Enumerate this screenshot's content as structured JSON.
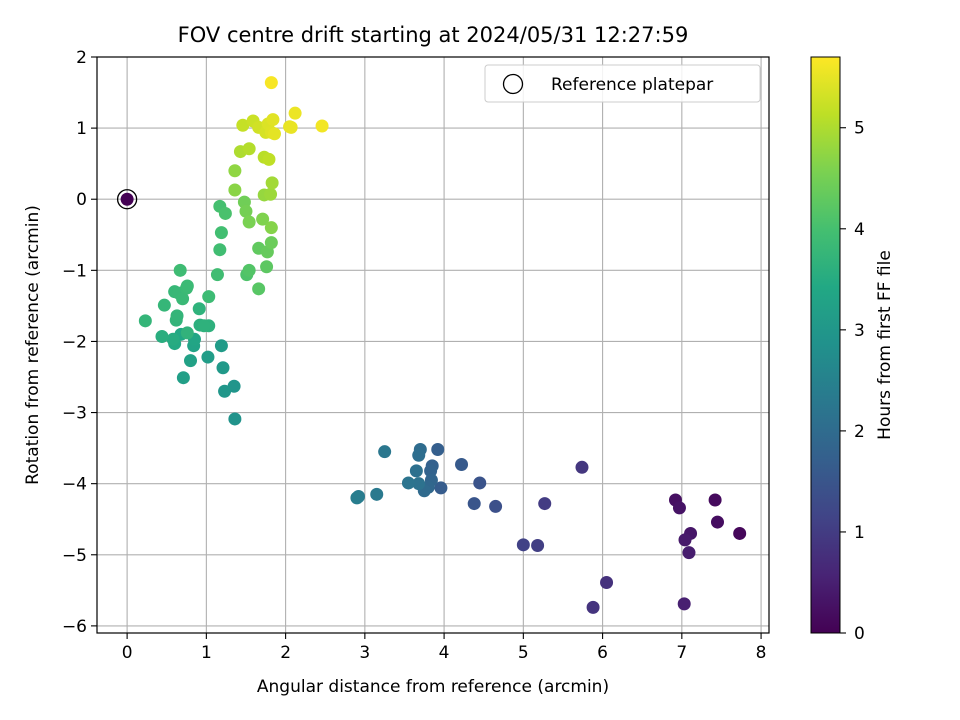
{
  "chart_data": {
    "type": "scatter",
    "title": "FOV centre drift starting at 2024/05/31 12:27:59",
    "xlabel": "Angular distance from reference (arcmin)",
    "ylabel": "Rotation from reference (arcmin)",
    "xlim": [
      -0.38,
      8.1
    ],
    "ylim": [
      -6.1,
      2.0
    ],
    "xticks": [
      0,
      1,
      2,
      3,
      4,
      5,
      6,
      7,
      8
    ],
    "yticks": [
      -6,
      -5,
      -4,
      -3,
      -2,
      -1,
      0,
      1,
      2
    ],
    "grid": true,
    "legend": {
      "placement": "top-right",
      "entries": [
        "Reference platepar"
      ]
    },
    "colormap": "viridis",
    "colorbar": {
      "label": "Hours from first FF file",
      "range": [
        0,
        5.7
      ],
      "ticks": [
        0,
        1,
        2,
        3,
        4,
        5
      ]
    },
    "reference_point": {
      "x": 0,
      "y": 0,
      "hours": 0
    },
    "points": [
      {
        "x": 7.73,
        "y": -4.7,
        "h": 0.1
      },
      {
        "x": 7.42,
        "y": -4.23,
        "h": 0.15
      },
      {
        "x": 7.45,
        "y": -4.54,
        "h": 0.2
      },
      {
        "x": 6.92,
        "y": -4.23,
        "h": 0.25
      },
      {
        "x": 6.97,
        "y": -4.34,
        "h": 0.3
      },
      {
        "x": 7.11,
        "y": -4.7,
        "h": 0.35
      },
      {
        "x": 7.04,
        "y": -4.79,
        "h": 0.4
      },
      {
        "x": 7.09,
        "y": -4.97,
        "h": 0.45
      },
      {
        "x": 7.03,
        "y": -5.69,
        "h": 0.5
      },
      {
        "x": 6.05,
        "y": -5.39,
        "h": 0.8
      },
      {
        "x": 5.88,
        "y": -5.74,
        "h": 0.85
      },
      {
        "x": 5.74,
        "y": -3.77,
        "h": 0.9
      },
      {
        "x": 5.27,
        "y": -4.28,
        "h": 1.0
      },
      {
        "x": 5.18,
        "y": -4.87,
        "h": 1.05
      },
      {
        "x": 5.0,
        "y": -4.86,
        "h": 1.1
      },
      {
        "x": 4.65,
        "y": -4.32,
        "h": 1.4
      },
      {
        "x": 4.45,
        "y": -3.99,
        "h": 1.45
      },
      {
        "x": 4.38,
        "y": -4.28,
        "h": 1.5
      },
      {
        "x": 4.22,
        "y": -3.73,
        "h": 1.6
      },
      {
        "x": 3.96,
        "y": -4.06,
        "h": 1.65
      },
      {
        "x": 3.92,
        "y": -3.52,
        "h": 1.7
      },
      {
        "x": 3.85,
        "y": -3.75,
        "h": 1.75
      },
      {
        "x": 3.83,
        "y": -3.82,
        "h": 1.8
      },
      {
        "x": 3.84,
        "y": -3.95,
        "h": 1.85
      },
      {
        "x": 3.8,
        "y": -4.05,
        "h": 1.9
      },
      {
        "x": 3.75,
        "y": -4.1,
        "h": 1.95
      },
      {
        "x": 3.7,
        "y": -3.52,
        "h": 2.0
      },
      {
        "x": 3.68,
        "y": -3.6,
        "h": 2.05
      },
      {
        "x": 3.65,
        "y": -3.82,
        "h": 2.1
      },
      {
        "x": 3.68,
        "y": -4.0,
        "h": 2.15
      },
      {
        "x": 3.55,
        "y": -3.99,
        "h": 2.2
      },
      {
        "x": 3.25,
        "y": -3.55,
        "h": 2.25
      },
      {
        "x": 3.15,
        "y": -4.15,
        "h": 2.3
      },
      {
        "x": 2.92,
        "y": -4.18,
        "h": 2.35
      },
      {
        "x": 2.9,
        "y": -4.2,
        "h": 2.4
      },
      {
        "x": 1.36,
        "y": -3.09,
        "h": 2.9
      },
      {
        "x": 1.35,
        "y": -2.63,
        "h": 2.95
      },
      {
        "x": 1.23,
        "y": -2.7,
        "h": 3.0
      },
      {
        "x": 1.21,
        "y": -2.37,
        "h": 3.05
      },
      {
        "x": 1.19,
        "y": -2.06,
        "h": 3.1
      },
      {
        "x": 1.02,
        "y": -2.22,
        "h": 3.15
      },
      {
        "x": 0.71,
        "y": -2.51,
        "h": 3.2
      },
      {
        "x": 0.8,
        "y": -2.27,
        "h": 3.25
      },
      {
        "x": 0.84,
        "y": -2.06,
        "h": 3.3
      },
      {
        "x": 0.85,
        "y": -1.97,
        "h": 3.35
      },
      {
        "x": 0.68,
        "y": -1.9,
        "h": 3.4
      },
      {
        "x": 0.6,
        "y": -2.03,
        "h": 3.45
      },
      {
        "x": 0.58,
        "y": -1.97,
        "h": 3.5
      },
      {
        "x": 0.44,
        "y": -1.93,
        "h": 3.55
      },
      {
        "x": 0.92,
        "y": -1.77,
        "h": 3.6
      },
      {
        "x": 1.03,
        "y": -1.78,
        "h": 3.62
      },
      {
        "x": 0.97,
        "y": -1.78,
        "h": 3.64
      },
      {
        "x": 0.91,
        "y": -1.54,
        "h": 3.66
      },
      {
        "x": 0.76,
        "y": -1.88,
        "h": 3.68
      },
      {
        "x": 0.62,
        "y": -1.7,
        "h": 3.7
      },
      {
        "x": 0.63,
        "y": -1.64,
        "h": 3.72
      },
      {
        "x": 0.23,
        "y": -1.71,
        "h": 3.74
      },
      {
        "x": 0.47,
        "y": -1.49,
        "h": 3.76
      },
      {
        "x": 0.6,
        "y": -1.3,
        "h": 3.78
      },
      {
        "x": 0.65,
        "y": -1.32,
        "h": 3.8
      },
      {
        "x": 0.7,
        "y": -1.4,
        "h": 3.82
      },
      {
        "x": 0.75,
        "y": -1.25,
        "h": 3.84
      },
      {
        "x": 0.76,
        "y": -1.22,
        "h": 3.86
      },
      {
        "x": 1.03,
        "y": -1.37,
        "h": 3.88
      },
      {
        "x": 0.67,
        "y": -1.0,
        "h": 3.9
      },
      {
        "x": 1.14,
        "y": -1.06,
        "h": 3.92
      },
      {
        "x": 1.17,
        "y": -0.71,
        "h": 3.94
      },
      {
        "x": 1.19,
        "y": -0.47,
        "h": 3.96
      },
      {
        "x": 1.17,
        "y": -0.1,
        "h": 4.0
      },
      {
        "x": 1.24,
        "y": -0.2,
        "h": 4.05
      },
      {
        "x": 1.51,
        "y": -1.06,
        "h": 4.1
      },
      {
        "x": 1.54,
        "y": -1.0,
        "h": 4.15
      },
      {
        "x": 1.66,
        "y": -1.26,
        "h": 4.2
      },
      {
        "x": 1.76,
        "y": -0.95,
        "h": 4.25
      },
      {
        "x": 1.66,
        "y": -0.69,
        "h": 4.3
      },
      {
        "x": 1.77,
        "y": -0.74,
        "h": 4.35
      },
      {
        "x": 1.82,
        "y": -0.61,
        "h": 4.4
      },
      {
        "x": 1.48,
        "y": -0.04,
        "h": 4.45
      },
      {
        "x": 1.5,
        "y": -0.17,
        "h": 4.5
      },
      {
        "x": 1.54,
        "y": -0.32,
        "h": 4.55
      },
      {
        "x": 1.71,
        "y": -0.28,
        "h": 4.6
      },
      {
        "x": 1.82,
        "y": -0.4,
        "h": 4.65
      },
      {
        "x": 1.36,
        "y": 0.13,
        "h": 4.7
      },
      {
        "x": 1.36,
        "y": 0.4,
        "h": 4.75
      },
      {
        "x": 1.73,
        "y": 0.06,
        "h": 4.8
      },
      {
        "x": 1.81,
        "y": 0.07,
        "h": 4.85
      },
      {
        "x": 1.83,
        "y": 0.23,
        "h": 4.9
      },
      {
        "x": 1.43,
        "y": 0.67,
        "h": 5.0
      },
      {
        "x": 1.54,
        "y": 0.71,
        "h": 5.05
      },
      {
        "x": 1.73,
        "y": 0.59,
        "h": 5.1
      },
      {
        "x": 1.79,
        "y": 0.56,
        "h": 5.15
      },
      {
        "x": 1.46,
        "y": 1.04,
        "h": 5.2
      },
      {
        "x": 1.59,
        "y": 1.1,
        "h": 5.25
      },
      {
        "x": 1.66,
        "y": 1.01,
        "h": 5.3
      },
      {
        "x": 1.75,
        "y": 0.94,
        "h": 5.35
      },
      {
        "x": 1.78,
        "y": 1.06,
        "h": 5.4
      },
      {
        "x": 1.82,
        "y": 0.94,
        "h": 5.42
      },
      {
        "x": 1.84,
        "y": 1.12,
        "h": 5.45
      },
      {
        "x": 1.86,
        "y": 0.92,
        "h": 5.48
      },
      {
        "x": 2.05,
        "y": 1.02,
        "h": 5.5
      },
      {
        "x": 2.07,
        "y": 1.01,
        "h": 5.52
      },
      {
        "x": 2.12,
        "y": 1.21,
        "h": 5.55
      },
      {
        "x": 2.46,
        "y": 1.03,
        "h": 5.6
      },
      {
        "x": 1.82,
        "y": 1.64,
        "h": 5.65
      }
    ]
  }
}
